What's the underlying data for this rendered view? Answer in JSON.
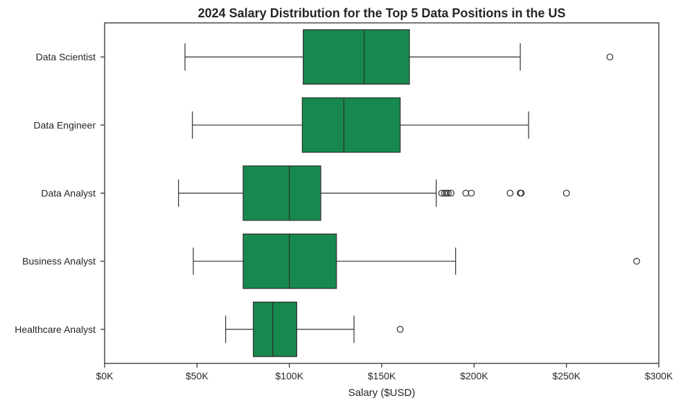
{
  "chart_data": {
    "type": "boxplot",
    "orientation": "horizontal",
    "title": "2024 Salary Distribution for the Top 5 Data Positions in the US",
    "xlabel": "Salary ($USD)",
    "ylabel": "",
    "xlim": [
      0,
      300000
    ],
    "x_ticks": [
      0,
      50000,
      100000,
      150000,
      200000,
      250000,
      300000
    ],
    "x_tick_labels": [
      "$0K",
      "$50K",
      "$100K",
      "$150K",
      "$200K",
      "$250K",
      "$300K"
    ],
    "box_color": "#17884e",
    "line_color": "#2e2e2e",
    "categories": [
      "Data Scientist",
      "Data Engineer",
      "Data Analyst",
      "Business Analyst",
      "Healthcare Analyst"
    ],
    "series": [
      {
        "name": "Data Scientist",
        "whisker_low": 43500,
        "q1": 107500,
        "median": 140500,
        "q3": 165000,
        "whisker_high": 225000,
        "outliers": [
          273500
        ]
      },
      {
        "name": "Data Engineer",
        "whisker_low": 47500,
        "q1": 107000,
        "median": 129500,
        "q3": 160000,
        "whisker_high": 229500,
        "outliers": []
      },
      {
        "name": "Data Analyst",
        "whisker_low": 40000,
        "q1": 75000,
        "median": 100000,
        "q3": 117000,
        "whisker_high": 179500,
        "outliers": [
          182500,
          184000,
          185000,
          186000,
          187500,
          195500,
          198500,
          219500,
          225000,
          225500,
          250000
        ]
      },
      {
        "name": "Business Analyst",
        "whisker_low": 48000,
        "q1": 75000,
        "median": 100000,
        "q3": 125500,
        "whisker_high": 190000,
        "outliers": [
          288000
        ]
      },
      {
        "name": "Healthcare Analyst",
        "whisker_low": 65500,
        "q1": 80500,
        "median": 91000,
        "q3": 104000,
        "whisker_high": 135000,
        "outliers": [
          160000
        ]
      }
    ]
  }
}
